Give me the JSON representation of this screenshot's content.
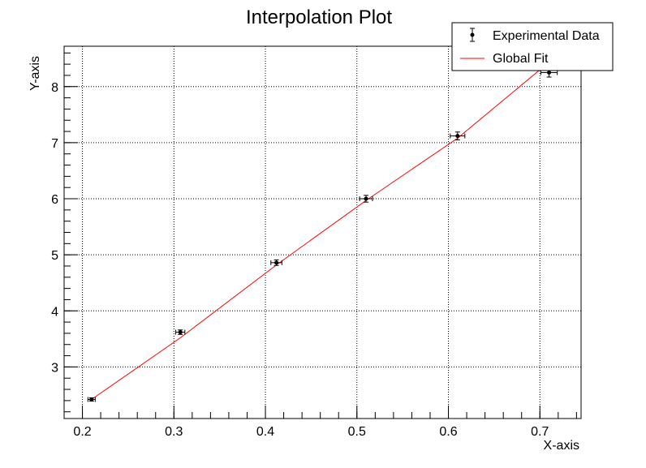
{
  "chart_data": {
    "type": "scatter",
    "title": "Interpolation Plot",
    "xlabel": "X-axis",
    "ylabel": "Y-axis",
    "xlim": [
      0.18,
      0.745
    ],
    "ylim": [
      2.08,
      8.72
    ],
    "x_ticks": [
      0.2,
      0.3,
      0.4,
      0.5,
      0.6,
      0.7
    ],
    "x_tick_labels": [
      "0.2",
      "0.3",
      "0.4",
      "0.5",
      "0.6",
      "0.7"
    ],
    "y_ticks": [
      3,
      4,
      5,
      6,
      7,
      8
    ],
    "y_tick_labels": [
      "3",
      "4",
      "5",
      "6",
      "7",
      "8"
    ],
    "grid": true,
    "legend_position": "top-right",
    "legend": [
      {
        "label": "Experimental Data",
        "marker": "point-with-error-bars",
        "color": "#000000"
      },
      {
        "label": "Global Fit",
        "marker": "line",
        "color": "#ff0000"
      }
    ],
    "series": [
      {
        "name": "Experimental Data",
        "color": "#000000",
        "x": [
          0.21,
          0.307,
          0.412,
          0.51,
          0.61,
          0.71
        ],
        "y": [
          2.42,
          3.62,
          4.86,
          6.0,
          7.12,
          8.25
        ],
        "x_err": [
          0.004,
          0.005,
          0.006,
          0.007,
          0.008,
          0.009
        ],
        "y_err": [
          0.03,
          0.04,
          0.05,
          0.06,
          0.07,
          0.08
        ]
      },
      {
        "name": "Global Fit",
        "color": "#ff0000",
        "type": "line",
        "x": [
          0.21,
          0.307,
          0.412,
          0.51,
          0.61,
          0.7
        ],
        "y": [
          2.42,
          3.52,
          4.82,
          5.97,
          7.08,
          8.3
        ]
      }
    ]
  }
}
